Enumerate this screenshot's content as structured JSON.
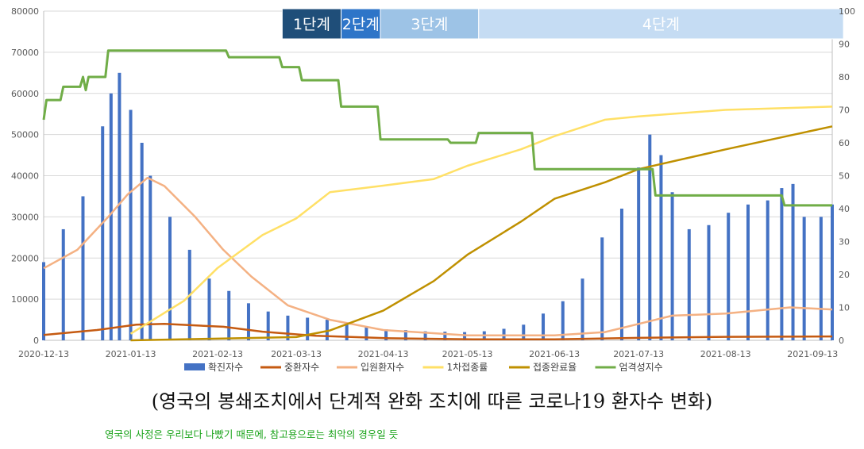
{
  "caption": "(영국의 봉쇄조치에서 단계적 완화 조치에 따른 코로나19 환자수 변화)",
  "note": "영국의 사정은 우리보다 나빴기 때문에, 참고용으로는 최악의 경우일 듯",
  "chart_data": {
    "type": "bar+line",
    "x_range": [
      "2020-12-13",
      "2021-09-20"
    ],
    "x_tick_labels": [
      "2020-12-13",
      "2021-01-13",
      "2021-02-13",
      "2021-03-13",
      "2021-04-13",
      "2021-05-13",
      "2021-06-13",
      "2021-07-13",
      "2021-08-13",
      "2021-09-13"
    ],
    "y_left": {
      "min": 0,
      "max": 80000,
      "ticks": [
        "0",
        "10000",
        "20000",
        "30000",
        "40000",
        "50000",
        "60000",
        "70000",
        "80000"
      ]
    },
    "y_right": {
      "min": 0,
      "max": 100,
      "ticks": [
        "0",
        "10",
        "20",
        "30",
        "40",
        "50",
        "60",
        "70",
        "80",
        "90",
        "100"
      ]
    },
    "grid": "horizontal",
    "legend_position": "bottom",
    "stages": [
      {
        "label": "1단계",
        "start": "2021-03-08",
        "end": "2021-03-29",
        "color": "#1f4e79",
        "text_color": "#ffffff"
      },
      {
        "label": "2단계",
        "start": "2021-03-29",
        "end": "2021-04-12",
        "color": "#2e75c8",
        "text_color": "#ffffff"
      },
      {
        "label": "3단계",
        "start": "2021-04-12",
        "end": "2021-05-17",
        "color": "#9dc3e6",
        "text_color": "#ffffff"
      },
      {
        "label": "4단계",
        "start": "2021-05-17",
        "end": "2021-09-24",
        "color": "#c5dcf3",
        "text_color": "#ffffff"
      }
    ],
    "series": [
      {
        "name": "확진자수",
        "type": "bar",
        "axis": "left",
        "color": "#4472c4",
        "points": [
          [
            "2020-12-13",
            19000
          ],
          [
            "2020-12-20",
            27000
          ],
          [
            "2020-12-27",
            35000
          ],
          [
            "2021-01-03",
            52000
          ],
          [
            "2021-01-06",
            60000
          ],
          [
            "2021-01-09",
            65000
          ],
          [
            "2021-01-13",
            56000
          ],
          [
            "2021-01-17",
            48000
          ],
          [
            "2021-01-20",
            40000
          ],
          [
            "2021-01-27",
            30000
          ],
          [
            "2021-02-03",
            22000
          ],
          [
            "2021-02-10",
            15000
          ],
          [
            "2021-02-17",
            12000
          ],
          [
            "2021-02-24",
            9000
          ],
          [
            "2021-03-03",
            7000
          ],
          [
            "2021-03-10",
            6000
          ],
          [
            "2021-03-17",
            5500
          ],
          [
            "2021-03-24",
            5000
          ],
          [
            "2021-03-31",
            4200
          ],
          [
            "2021-04-07",
            3200
          ],
          [
            "2021-04-14",
            2700
          ],
          [
            "2021-04-21",
            2500
          ],
          [
            "2021-04-28",
            2200
          ],
          [
            "2021-05-05",
            2100
          ],
          [
            "2021-05-12",
            2000
          ],
          [
            "2021-05-19",
            2200
          ],
          [
            "2021-05-26",
            2800
          ],
          [
            "2021-06-02",
            3800
          ],
          [
            "2021-06-09",
            6500
          ],
          [
            "2021-06-16",
            9500
          ],
          [
            "2021-06-23",
            15000
          ],
          [
            "2021-06-30",
            25000
          ],
          [
            "2021-07-07",
            32000
          ],
          [
            "2021-07-13",
            42000
          ],
          [
            "2021-07-17",
            50000
          ],
          [
            "2021-07-21",
            45000
          ],
          [
            "2021-07-25",
            36000
          ],
          [
            "2021-07-31",
            27000
          ],
          [
            "2021-08-07",
            28000
          ],
          [
            "2021-08-14",
            31000
          ],
          [
            "2021-08-21",
            33000
          ],
          [
            "2021-08-28",
            34000
          ],
          [
            "2021-09-02",
            37000
          ],
          [
            "2021-09-06",
            38000
          ],
          [
            "2021-09-10",
            30000
          ],
          [
            "2021-09-16",
            30000
          ],
          [
            "2021-09-20",
            33000
          ]
        ]
      },
      {
        "name": "중환자수",
        "type": "line",
        "axis": "left",
        "color": "#c55a11",
        "points": [
          [
            "2020-12-13",
            1300
          ],
          [
            "2021-01-01",
            2500
          ],
          [
            "2021-01-15",
            3800
          ],
          [
            "2021-01-25",
            4000
          ],
          [
            "2021-02-15",
            3300
          ],
          [
            "2021-03-01",
            2100
          ],
          [
            "2021-03-20",
            1100
          ],
          [
            "2021-04-15",
            500
          ],
          [
            "2021-05-15",
            250
          ],
          [
            "2021-06-13",
            250
          ],
          [
            "2021-07-13",
            600
          ],
          [
            "2021-08-13",
            850
          ],
          [
            "2021-09-20",
            950
          ]
        ]
      },
      {
        "name": "입원환자수",
        "type": "line",
        "axis": "left",
        "color": "#f4b183",
        "points": [
          [
            "2020-12-13",
            17500
          ],
          [
            "2020-12-25",
            22000
          ],
          [
            "2021-01-05",
            30000
          ],
          [
            "2021-01-12",
            35500
          ],
          [
            "2021-01-19",
            39500
          ],
          [
            "2021-01-25",
            37500
          ],
          [
            "2021-02-05",
            30000
          ],
          [
            "2021-02-15",
            22000
          ],
          [
            "2021-02-25",
            15500
          ],
          [
            "2021-03-10",
            8500
          ],
          [
            "2021-03-25",
            5000
          ],
          [
            "2021-04-13",
            2500
          ],
          [
            "2021-05-13",
            1200
          ],
          [
            "2021-06-13",
            1200
          ],
          [
            "2021-07-01",
            2000
          ],
          [
            "2021-07-13",
            4000
          ],
          [
            "2021-07-25",
            6000
          ],
          [
            "2021-08-13",
            6500
          ],
          [
            "2021-09-05",
            8000
          ],
          [
            "2021-09-20",
            7500
          ]
        ]
      },
      {
        "name": "1차접종률",
        "type": "line",
        "axis": "right",
        "color": "#ffe066",
        "points": [
          [
            "2021-01-13",
            2
          ],
          [
            "2021-02-01",
            12
          ],
          [
            "2021-02-13",
            22
          ],
          [
            "2021-03-01",
            32
          ],
          [
            "2021-03-13",
            37
          ],
          [
            "2021-03-25",
            45
          ],
          [
            "2021-04-13",
            47
          ],
          [
            "2021-05-01",
            49
          ],
          [
            "2021-05-13",
            53
          ],
          [
            "2021-06-01",
            58
          ],
          [
            "2021-06-13",
            62
          ],
          [
            "2021-07-01",
            67
          ],
          [
            "2021-07-13",
            68
          ],
          [
            "2021-08-13",
            70
          ],
          [
            "2021-09-20",
            71
          ]
        ]
      },
      {
        "name": "접종완료율",
        "type": "line",
        "axis": "right",
        "color": "#bf9000",
        "points": [
          [
            "2021-01-13",
            0
          ],
          [
            "2021-02-13",
            0.5
          ],
          [
            "2021-03-13",
            1
          ],
          [
            "2021-03-25",
            3
          ],
          [
            "2021-04-13",
            9
          ],
          [
            "2021-05-01",
            18
          ],
          [
            "2021-05-13",
            26
          ],
          [
            "2021-06-01",
            36
          ],
          [
            "2021-06-13",
            43
          ],
          [
            "2021-07-01",
            48
          ],
          [
            "2021-07-13",
            52
          ],
          [
            "2021-08-13",
            58
          ],
          [
            "2021-09-20",
            65
          ]
        ]
      },
      {
        "name": "엄격성지수",
        "type": "step",
        "axis": "right",
        "color": "#70ad47",
        "points": [
          [
            "2020-12-13",
            67
          ],
          [
            "2020-12-14",
            73
          ],
          [
            "2020-12-19",
            73
          ],
          [
            "2020-12-20",
            77
          ],
          [
            "2020-12-26",
            77
          ],
          [
            "2020-12-27",
            80
          ],
          [
            "2020-12-28",
            76
          ],
          [
            "2020-12-29",
            80
          ],
          [
            "2021-01-04",
            80
          ],
          [
            "2021-01-05",
            88
          ],
          [
            "2021-02-16",
            88
          ],
          [
            "2021-02-17",
            86
          ],
          [
            "2021-03-07",
            86
          ],
          [
            "2021-03-08",
            83
          ],
          [
            "2021-03-14",
            83
          ],
          [
            "2021-03-15",
            79
          ],
          [
            "2021-03-28",
            79
          ],
          [
            "2021-03-29",
            71
          ],
          [
            "2021-04-11",
            71
          ],
          [
            "2021-04-12",
            61
          ],
          [
            "2021-05-06",
            61
          ],
          [
            "2021-05-07",
            60
          ],
          [
            "2021-05-16",
            60
          ],
          [
            "2021-05-17",
            63
          ],
          [
            "2021-06-05",
            63
          ],
          [
            "2021-06-06",
            52
          ],
          [
            "2021-07-18",
            52
          ],
          [
            "2021-07-19",
            44
          ],
          [
            "2021-09-02",
            44
          ],
          [
            "2021-09-03",
            41
          ],
          [
            "2021-09-20",
            41
          ]
        ]
      }
    ]
  }
}
